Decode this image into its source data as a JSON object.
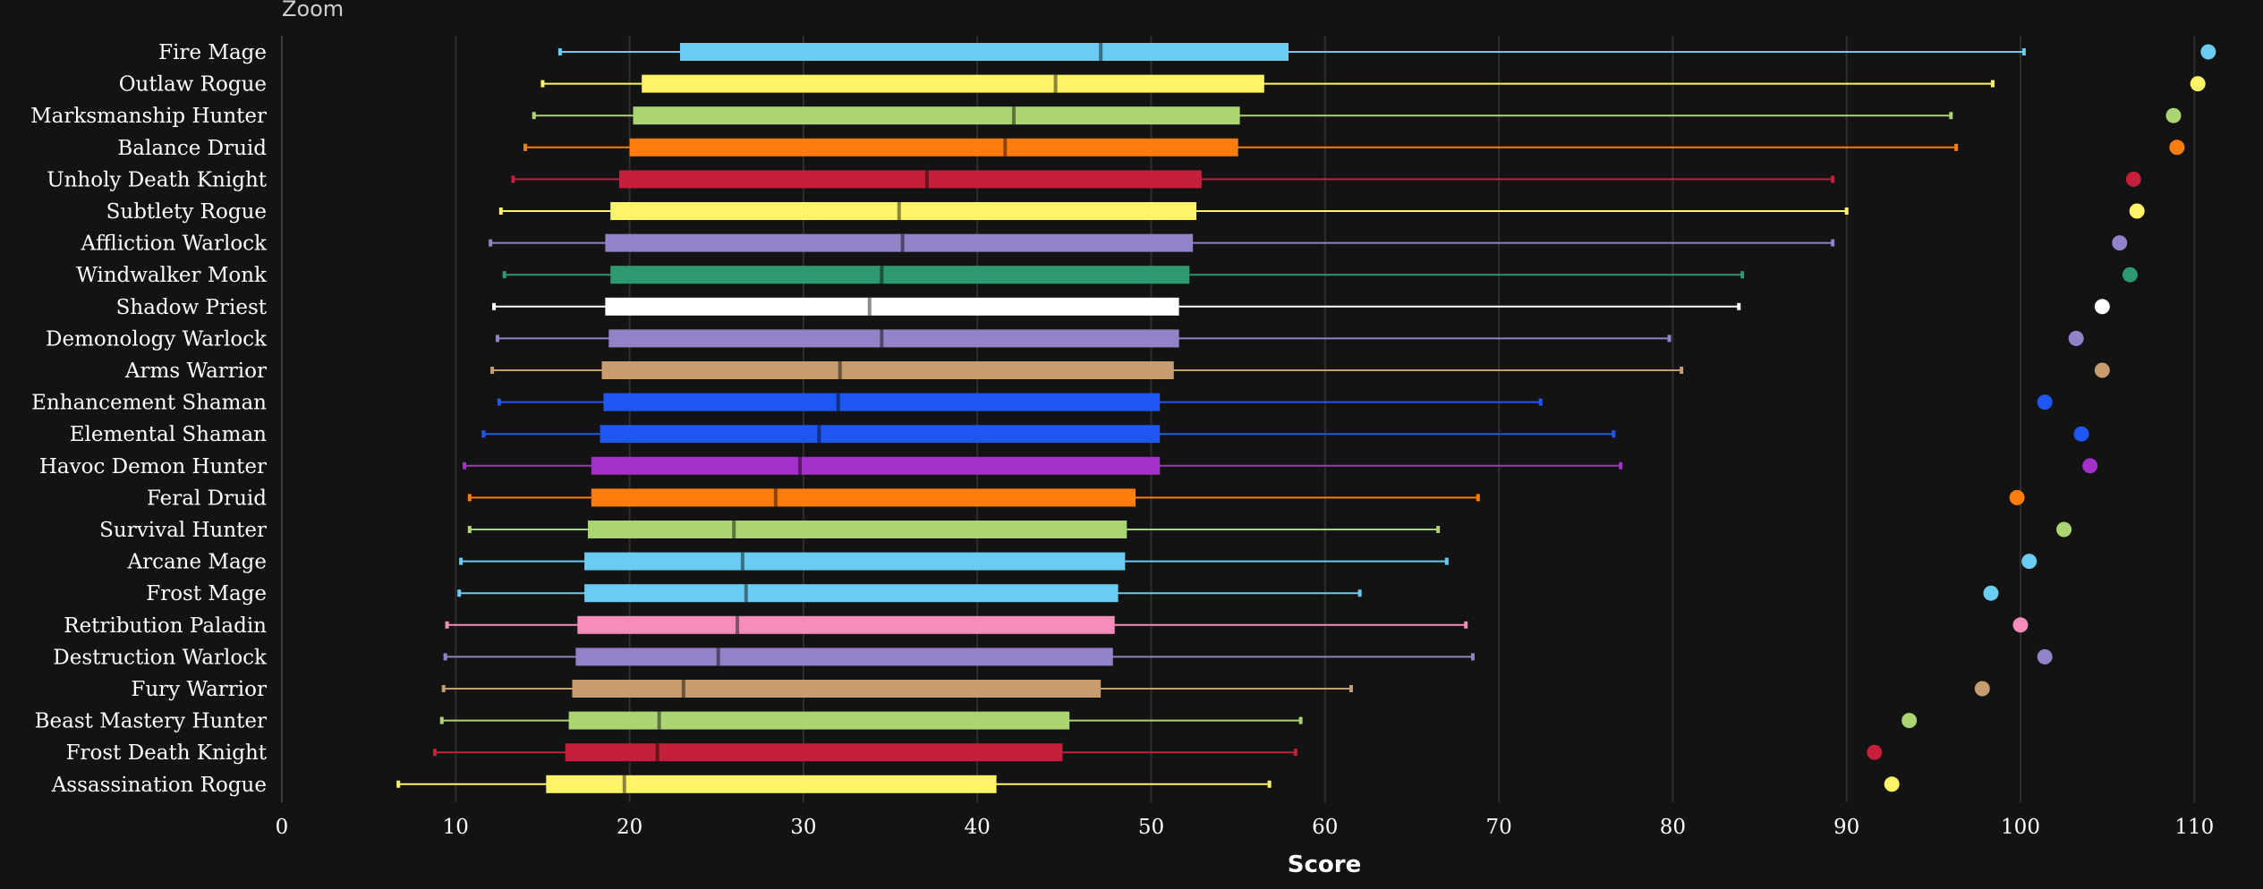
{
  "zoom_label": "Zoom",
  "chart_data": {
    "type": "box",
    "xlabel": "Score",
    "xlim": [
      0,
      112
    ],
    "xticks": [
      0,
      10,
      20,
      30,
      40,
      50,
      60,
      70,
      80,
      90,
      100,
      110
    ],
    "grid": "vertical",
    "series": [
      {
        "name": "Fire Mage",
        "color": "#69ccf0",
        "whisker_low": 16.0,
        "q1": 22.9,
        "median": 47.1,
        "q3": 57.9,
        "whisker_high": 100.2,
        "max_point": 110.8
      },
      {
        "name": "Outlaw Rogue",
        "color": "#fff468",
        "whisker_low": 15.0,
        "q1": 20.7,
        "median": 44.5,
        "q3": 56.5,
        "whisker_high": 98.4,
        "max_point": 110.2
      },
      {
        "name": "Marksmanship Hunter",
        "color": "#abd473",
        "whisker_low": 14.5,
        "q1": 20.2,
        "median": 42.1,
        "q3": 55.1,
        "whisker_high": 96.0,
        "max_point": 108.8
      },
      {
        "name": "Balance Druid",
        "color": "#ff7d0a",
        "whisker_low": 14.0,
        "q1": 20.0,
        "median": 41.6,
        "q3": 55.0,
        "whisker_high": 96.3,
        "max_point": 109.0
      },
      {
        "name": "Unholy Death Knight",
        "color": "#c41f3b",
        "whisker_low": 13.3,
        "q1": 19.4,
        "median": 37.1,
        "q3": 52.9,
        "whisker_high": 89.2,
        "max_point": 106.5
      },
      {
        "name": "Subtlety Rogue",
        "color": "#fff468",
        "whisker_low": 12.6,
        "q1": 18.9,
        "median": 35.5,
        "q3": 52.6,
        "whisker_high": 90.0,
        "max_point": 106.7
      },
      {
        "name": "Affliction Warlock",
        "color": "#9482c9",
        "whisker_low": 12.0,
        "q1": 18.6,
        "median": 35.7,
        "q3": 52.4,
        "whisker_high": 89.2,
        "max_point": 105.7
      },
      {
        "name": "Windwalker Monk",
        "color": "#2e9870",
        "whisker_low": 12.8,
        "q1": 18.9,
        "median": 34.5,
        "q3": 52.2,
        "whisker_high": 84.0,
        "max_point": 106.3
      },
      {
        "name": "Shadow Priest",
        "color": "#ffffff",
        "whisker_low": 12.2,
        "q1": 18.6,
        "median": 33.8,
        "q3": 51.6,
        "whisker_high": 83.8,
        "max_point": 104.7
      },
      {
        "name": "Demonology Warlock",
        "color": "#9482c9",
        "whisker_low": 12.4,
        "q1": 18.8,
        "median": 34.5,
        "q3": 51.6,
        "whisker_high": 79.8,
        "max_point": 103.2
      },
      {
        "name": "Arms Warrior",
        "color": "#c79c6e",
        "whisker_low": 12.1,
        "q1": 18.4,
        "median": 32.1,
        "q3": 51.3,
        "whisker_high": 80.5,
        "max_point": 104.7
      },
      {
        "name": "Enhancement Shaman",
        "color": "#1f57f2",
        "whisker_low": 12.5,
        "q1": 18.5,
        "median": 32.0,
        "q3": 50.5,
        "whisker_high": 72.4,
        "max_point": 101.4
      },
      {
        "name": "Elemental Shaman",
        "color": "#1f57f2",
        "whisker_low": 11.6,
        "q1": 18.3,
        "median": 30.9,
        "q3": 50.5,
        "whisker_high": 76.6,
        "max_point": 103.5
      },
      {
        "name": "Havoc Demon Hunter",
        "color": "#a330c9",
        "whisker_low": 10.5,
        "q1": 17.8,
        "median": 29.8,
        "q3": 50.5,
        "whisker_high": 77.0,
        "max_point": 104.0
      },
      {
        "name": "Feral Druid",
        "color": "#ff7d0a",
        "whisker_low": 10.8,
        "q1": 17.8,
        "median": 28.4,
        "q3": 49.1,
        "whisker_high": 68.8,
        "max_point": 99.8
      },
      {
        "name": "Survival Hunter",
        "color": "#abd473",
        "whisker_low": 10.8,
        "q1": 17.6,
        "median": 26.0,
        "q3": 48.6,
        "whisker_high": 66.5,
        "max_point": 102.5
      },
      {
        "name": "Arcane Mage",
        "color": "#69ccf0",
        "whisker_low": 10.3,
        "q1": 17.4,
        "median": 26.5,
        "q3": 48.5,
        "whisker_high": 67.0,
        "max_point": 100.5
      },
      {
        "name": "Frost Mage",
        "color": "#69ccf0",
        "whisker_low": 10.2,
        "q1": 17.4,
        "median": 26.7,
        "q3": 48.1,
        "whisker_high": 62.0,
        "max_point": 98.3
      },
      {
        "name": "Retribution Paladin",
        "color": "#f58cba",
        "whisker_low": 9.5,
        "q1": 17.0,
        "median": 26.2,
        "q3": 47.9,
        "whisker_high": 68.1,
        "max_point": 100.0
      },
      {
        "name": "Destruction Warlock",
        "color": "#9482c9",
        "whisker_low": 9.4,
        "q1": 16.9,
        "median": 25.1,
        "q3": 47.8,
        "whisker_high": 68.5,
        "max_point": 101.4
      },
      {
        "name": "Fury Warrior",
        "color": "#c79c6e",
        "whisker_low": 9.3,
        "q1": 16.7,
        "median": 23.1,
        "q3": 47.1,
        "whisker_high": 61.5,
        "max_point": 97.8
      },
      {
        "name": "Beast Mastery Hunter",
        "color": "#abd473",
        "whisker_low": 9.2,
        "q1": 16.5,
        "median": 21.7,
        "q3": 45.3,
        "whisker_high": 58.6,
        "max_point": 93.6
      },
      {
        "name": "Frost Death Knight",
        "color": "#c41f3b",
        "whisker_low": 8.8,
        "q1": 16.3,
        "median": 21.6,
        "q3": 44.9,
        "whisker_high": 58.3,
        "max_point": 91.6
      },
      {
        "name": "Assassination Rogue",
        "color": "#fff468",
        "whisker_low": 6.7,
        "q1": 15.2,
        "median": 19.7,
        "q3": 41.1,
        "whisker_high": 56.8,
        "max_point": 92.6
      }
    ]
  }
}
